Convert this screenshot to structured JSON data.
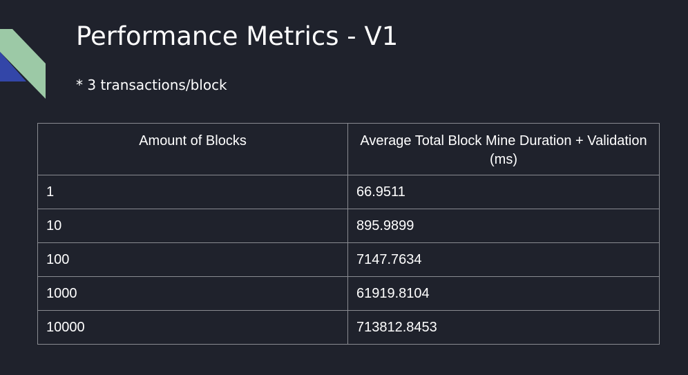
{
  "slide": {
    "title": "Performance Metrics - V1",
    "subtitle": "* 3 transactions/block"
  },
  "colors": {
    "background": "#1f222c",
    "accent_green": "#9cc9a6",
    "accent_blue": "#3346a8",
    "table_border": "#8a8c92",
    "text": "#ffffff"
  },
  "table": {
    "headers": [
      "Amount of Blocks",
      "Average Total Block Mine Duration + Validation (ms)"
    ],
    "rows": [
      [
        "1",
        "66.9511"
      ],
      [
        "10",
        "895.9899"
      ],
      [
        "100",
        "7147.7634"
      ],
      [
        "1000",
        "61919.8104"
      ],
      [
        "10000",
        "713812.8453"
      ]
    ]
  }
}
